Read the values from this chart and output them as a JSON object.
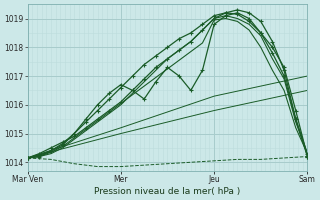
{
  "title": "",
  "xlabel": "Pression niveau de la mer( hPa )",
  "bg_color": "#cce8e8",
  "plot_bg_color": "#cce8e8",
  "grid_major_color": "#a8cccc",
  "grid_minor_color": "#bcdcdc",
  "line_color": "#1a5c28",
  "ylim": [
    1013.7,
    1019.5
  ],
  "yticks": [
    1014,
    1015,
    1016,
    1017,
    1018,
    1019
  ],
  "xtick_labels": [
    "Mar Ven",
    "Mer",
    "Jeu",
    "Sam"
  ],
  "xtick_positions": [
    0,
    40,
    80,
    120
  ],
  "x_total": 120,
  "num_minor_x": 120,
  "series": [
    {
      "x": [
        0,
        5,
        10,
        15,
        20,
        25,
        30,
        35,
        40,
        45,
        50,
        55,
        60,
        65,
        70,
        75,
        80,
        85,
        90,
        95,
        100,
        105,
        110,
        115,
        120
      ],
      "y": [
        1014.15,
        1014.3,
        1014.5,
        1014.7,
        1014.9,
        1015.2,
        1015.5,
        1015.8,
        1016.1,
        1016.5,
        1016.9,
        1017.3,
        1017.6,
        1017.9,
        1018.2,
        1018.6,
        1019.0,
        1019.2,
        1019.3,
        1019.2,
        1018.9,
        1018.2,
        1017.2,
        1015.5,
        1014.2
      ],
      "marker": true,
      "dashed": false,
      "lw": 0.9
    },
    {
      "x": [
        0,
        5,
        10,
        15,
        20,
        25,
        30,
        35,
        40,
        45,
        50,
        55,
        60,
        65,
        70,
        75,
        80,
        85,
        90,
        95,
        100,
        105,
        110,
        115,
        120
      ],
      "y": [
        1014.15,
        1014.2,
        1014.4,
        1014.6,
        1015.0,
        1015.5,
        1016.0,
        1016.4,
        1016.7,
        1016.5,
        1016.2,
        1016.8,
        1017.3,
        1017.0,
        1016.5,
        1017.2,
        1018.8,
        1019.1,
        1019.2,
        1019.0,
        1018.5,
        1018.0,
        1017.3,
        1015.8,
        1014.2
      ],
      "marker": true,
      "dashed": false,
      "lw": 0.9
    },
    {
      "x": [
        0,
        5,
        10,
        15,
        20,
        25,
        30,
        35,
        40,
        45,
        50,
        55,
        60,
        65,
        70,
        75,
        80,
        85,
        90,
        95,
        100,
        105,
        110,
        115,
        120
      ],
      "y": [
        1014.15,
        1014.25,
        1014.4,
        1014.65,
        1015.0,
        1015.4,
        1015.8,
        1016.2,
        1016.6,
        1017.0,
        1017.4,
        1017.7,
        1018.0,
        1018.3,
        1018.5,
        1018.8,
        1019.1,
        1019.2,
        1019.15,
        1018.9,
        1018.5,
        1017.8,
        1017.0,
        1015.5,
        1014.3
      ],
      "marker": true,
      "dashed": false,
      "lw": 0.9
    },
    {
      "x": [
        0,
        5,
        10,
        15,
        20,
        25,
        30,
        35,
        40,
        45,
        50,
        55,
        60,
        65,
        70,
        75,
        80,
        85,
        90,
        95,
        100,
        105,
        110,
        115,
        120
      ],
      "y": [
        1014.15,
        1014.2,
        1014.3,
        1014.5,
        1014.8,
        1015.1,
        1015.4,
        1015.7,
        1016.0,
        1016.4,
        1016.8,
        1017.2,
        1017.6,
        1017.9,
        1018.2,
        1018.6,
        1019.0,
        1019.1,
        1019.0,
        1018.8,
        1018.4,
        1017.6,
        1016.9,
        1015.4,
        1014.3
      ],
      "marker": false,
      "dashed": false,
      "lw": 0.8
    },
    {
      "x": [
        0,
        5,
        10,
        15,
        20,
        25,
        30,
        35,
        40,
        45,
        50,
        55,
        60,
        65,
        70,
        75,
        80,
        85,
        90,
        95,
        100,
        105,
        110,
        115,
        120
      ],
      "y": [
        1014.15,
        1014.2,
        1014.35,
        1014.55,
        1014.85,
        1015.15,
        1015.45,
        1015.75,
        1016.05,
        1016.35,
        1016.65,
        1016.95,
        1017.25,
        1017.55,
        1017.85,
        1018.15,
        1018.95,
        1019.0,
        1018.9,
        1018.6,
        1018.0,
        1017.2,
        1016.5,
        1015.2,
        1014.3
      ],
      "marker": false,
      "dashed": false,
      "lw": 0.8
    },
    {
      "x": [
        0,
        40,
        80,
        120
      ],
      "y": [
        1014.15,
        1015.2,
        1016.3,
        1017.0
      ],
      "marker": false,
      "dashed": false,
      "lw": 0.7
    },
    {
      "x": [
        0,
        40,
        80,
        120
      ],
      "y": [
        1014.15,
        1015.0,
        1015.8,
        1016.5
      ],
      "marker": false,
      "dashed": false,
      "lw": 0.7
    },
    {
      "x": [
        0,
        10,
        20,
        30,
        40,
        50,
        60,
        70,
        80,
        90,
        100,
        110,
        120
      ],
      "y": [
        1014.15,
        1014.1,
        1013.95,
        1013.85,
        1013.85,
        1013.9,
        1013.95,
        1014.0,
        1014.05,
        1014.1,
        1014.1,
        1014.15,
        1014.2
      ],
      "marker": false,
      "dashed": true,
      "lw": 0.7
    }
  ]
}
